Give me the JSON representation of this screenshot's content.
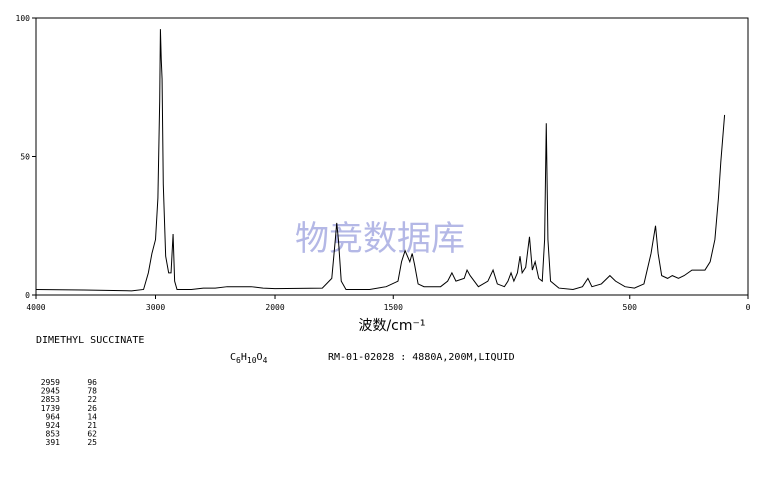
{
  "chart_data": {
    "type": "line",
    "watermark": "物竞数据库",
    "xlabel": "波数/cm⁻¹",
    "compound": "DIMETHYL SUCCINATE",
    "formula": [
      "C",
      "6",
      "H",
      "10",
      "O",
      "4"
    ],
    "sample": "RM-01-02028 : 4880A,200M,LIQUID",
    "xlim": [
      4000,
      0
    ],
    "x_scale_change": 2000,
    "xticks": [
      4000,
      3000,
      2000,
      1500,
      500,
      0
    ],
    "ylim": [
      0,
      100
    ],
    "yticks": [
      0,
      50,
      100
    ],
    "color": "#000000",
    "x": [
      4000,
      3600,
      3200,
      3100,
      3060,
      3030,
      3000,
      2980,
      2965,
      2959,
      2952,
      2945,
      2935,
      2915,
      2890,
      2870,
      2853,
      2840,
      2820,
      2700,
      2600,
      2500,
      2400,
      2300,
      2200,
      2100,
      2000,
      1800,
      1760,
      1745,
      1739,
      1732,
      1720,
      1700,
      1600,
      1530,
      1480,
      1465,
      1450,
      1440,
      1430,
      1420,
      1410,
      1395,
      1370,
      1300,
      1270,
      1252,
      1235,
      1200,
      1188,
      1175,
      1140,
      1100,
      1078,
      1060,
      1030,
      1015,
      1002,
      990,
      975,
      964,
      955,
      940,
      924,
      912,
      900,
      885,
      870,
      860,
      853,
      846,
      835,
      800,
      740,
      700,
      677,
      660,
      620,
      584,
      560,
      520,
      480,
      440,
      410,
      391,
      380,
      365,
      340,
      320,
      294,
      270,
      237,
      210,
      182,
      160,
      140,
      125,
      115,
      99
    ],
    "values": [
      2,
      1.8,
      1.5,
      2,
      8,
      15,
      20,
      35,
      70,
      96,
      85,
      78,
      40,
      14,
      8,
      8,
      22,
      5,
      2,
      2,
      2.5,
      2.5,
      3,
      3,
      3,
      2.5,
      2.3,
      2.5,
      6,
      20,
      26,
      20,
      5,
      2,
      2,
      3,
      5,
      12,
      16,
      14,
      12,
      15,
      11,
      4,
      3,
      3,
      5,
      8,
      5,
      6,
      9,
      7,
      3,
      5,
      9,
      4,
      3,
      5,
      8,
      5,
      8,
      14,
      8,
      10,
      21,
      9,
      12,
      6,
      5,
      20,
      62,
      20,
      5,
      2.5,
      2,
      3,
      6,
      3,
      4,
      7,
      5,
      3,
      2.5,
      4,
      15,
      25,
      15,
      7,
      6,
      7,
      6,
      7,
      9,
      9,
      9,
      12,
      20,
      35,
      48,
      65
    ],
    "peaks": [
      [
        2959,
        96
      ],
      [
        2945,
        78
      ],
      [
        2853,
        22
      ],
      [
        1739,
        26
      ],
      [
        964,
        14
      ],
      [
        924,
        21
      ],
      [
        853,
        62
      ],
      [
        391,
        25
      ]
    ]
  }
}
